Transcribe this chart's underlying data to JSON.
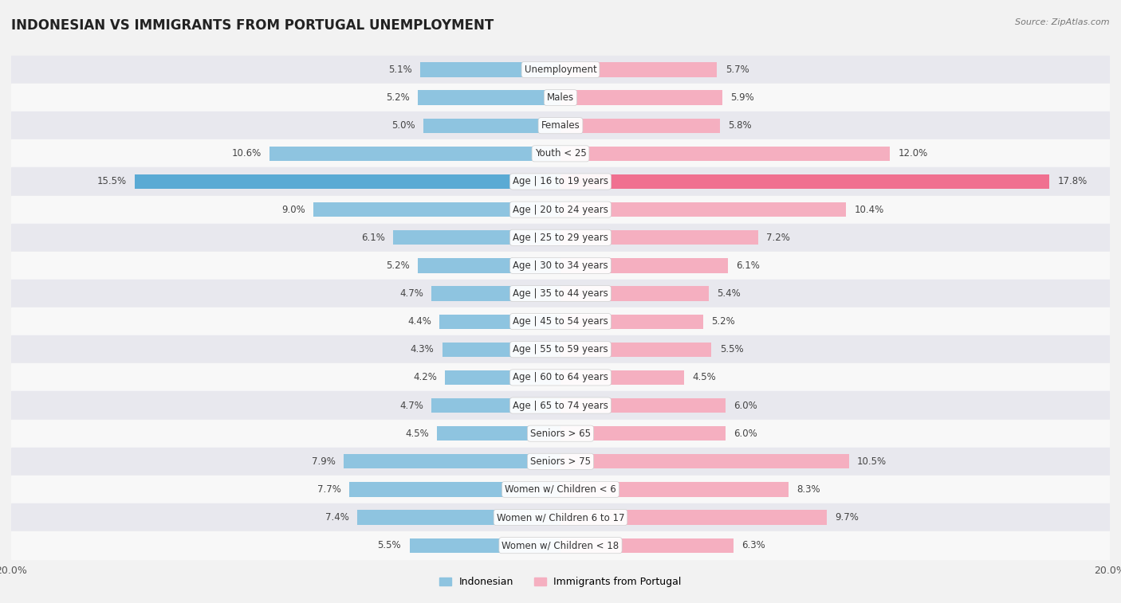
{
  "title": "INDONESIAN VS IMMIGRANTS FROM PORTUGAL UNEMPLOYMENT",
  "source": "Source: ZipAtlas.com",
  "categories": [
    "Unemployment",
    "Males",
    "Females",
    "Youth < 25",
    "Age | 16 to 19 years",
    "Age | 20 to 24 years",
    "Age | 25 to 29 years",
    "Age | 30 to 34 years",
    "Age | 35 to 44 years",
    "Age | 45 to 54 years",
    "Age | 55 to 59 years",
    "Age | 60 to 64 years",
    "Age | 65 to 74 years",
    "Seniors > 65",
    "Seniors > 75",
    "Women w/ Children < 6",
    "Women w/ Children 6 to 17",
    "Women w/ Children < 18"
  ],
  "indonesian": [
    5.1,
    5.2,
    5.0,
    10.6,
    15.5,
    9.0,
    6.1,
    5.2,
    4.7,
    4.4,
    4.3,
    4.2,
    4.7,
    4.5,
    7.9,
    7.7,
    7.4,
    5.5
  ],
  "portugal": [
    5.7,
    5.9,
    5.8,
    12.0,
    17.8,
    10.4,
    7.2,
    6.1,
    5.4,
    5.2,
    5.5,
    4.5,
    6.0,
    6.0,
    10.5,
    8.3,
    9.7,
    6.3
  ],
  "indonesian_color": "#8ec4e0",
  "portugal_color": "#f5afc0",
  "highlight_indonesian_color": "#5aaad4",
  "highlight_portugal_color": "#f07090",
  "background_color": "#f2f2f2",
  "row_light": "#f8f8f8",
  "row_dark": "#e8e8ee",
  "max_val": 20.0,
  "bar_height": 0.52,
  "label_fontsize": 8.5,
  "category_fontsize": 8.5,
  "title_fontsize": 12
}
